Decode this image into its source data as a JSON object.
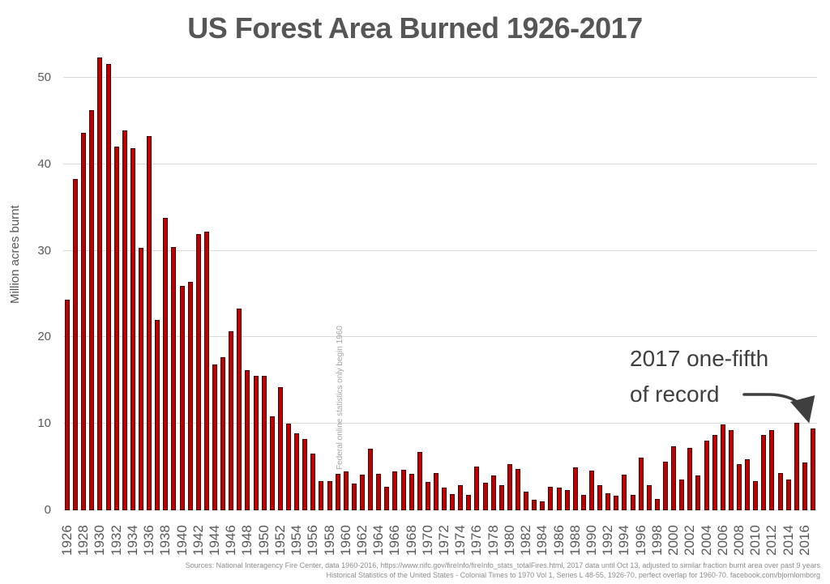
{
  "title": "US Forest Area Burned 1926-2017",
  "y_axis": {
    "label": "Million acres burnt",
    "ticks": [
      0,
      10,
      20,
      30,
      40,
      50
    ]
  },
  "annotation": {
    "line1": "2017 one-fifth",
    "line2": "of record"
  },
  "note_vertical": "Federal online statistics only begin 1960",
  "sources": {
    "line1": "Sources: National Interagency Fire Center,  data 1960-2016, https://www.nifc.gov/fireInfo/fireInfo_stats_totalFires.html, 2017 data until Oct 13, adjusted to similar fraction burnt area over past 9 years",
    "line2": "Historical Statistics of the United States - Colonial Times to 1970 Vol 1, Series L 48-55, 1926-70, perfect overlap for 1960-70. facebook.com/bjornlomborg"
  },
  "colors": {
    "bar_fill": "#c00000",
    "bar_border": "#3c0404",
    "gridline": "#d9d9d9",
    "title_text": "#565656",
    "axis_text": "#595959",
    "annotation_text": "#3f3f3f",
    "note_text": "#a6a6a6",
    "sources_text": "#8c8c8c"
  },
  "chart_data": {
    "type": "bar",
    "title": "US Forest Area Burned 1926-2017",
    "xlabel": "",
    "ylabel": "Million acres burnt",
    "ylim": [
      0,
      50
    ],
    "grid": "horizontal gridlines at every 10",
    "legend": "none",
    "x_tick_labels": [
      "1926",
      "1928",
      "1930",
      "1932",
      "1934",
      "1936",
      "1938",
      "1940",
      "1942",
      "1944",
      "1946",
      "1948",
      "1950",
      "1952",
      "1954",
      "1956",
      "1958",
      "1960",
      "1962",
      "1964",
      "1966",
      "1968",
      "1970",
      "1972",
      "1974",
      "1976",
      "1978",
      "1980",
      "1982",
      "1984",
      "1986",
      "1988",
      "1990",
      "1992",
      "1994",
      "1996",
      "1998",
      "2000",
      "2002",
      "2004",
      "2006",
      "2008",
      "2010",
      "2012",
      "2014",
      "2016"
    ],
    "categories": [
      1926,
      1927,
      1928,
      1929,
      1930,
      1931,
      1932,
      1933,
      1934,
      1935,
      1936,
      1937,
      1938,
      1939,
      1940,
      1941,
      1942,
      1943,
      1944,
      1945,
      1946,
      1947,
      1948,
      1949,
      1950,
      1951,
      1952,
      1953,
      1954,
      1955,
      1956,
      1957,
      1958,
      1959,
      1960,
      1961,
      1962,
      1963,
      1964,
      1965,
      1966,
      1967,
      1968,
      1969,
      1970,
      1971,
      1972,
      1973,
      1974,
      1975,
      1976,
      1977,
      1978,
      1979,
      1980,
      1981,
      1982,
      1983,
      1984,
      1985,
      1986,
      1987,
      1988,
      1989,
      1990,
      1991,
      1992,
      1993,
      1994,
      1995,
      1996,
      1997,
      1998,
      1999,
      2000,
      2001,
      2002,
      2003,
      2004,
      2005,
      2006,
      2007,
      2008,
      2009,
      2010,
      2011,
      2012,
      2013,
      2014,
      2015,
      2016,
      2017
    ],
    "values": [
      24.3,
      38.3,
      43.6,
      46.3,
      52.3,
      51.6,
      42.0,
      43.9,
      41.9,
      30.3,
      43.3,
      22.0,
      33.8,
      30.4,
      25.9,
      26.4,
      31.9,
      32.2,
      16.9,
      17.7,
      20.7,
      23.3,
      16.2,
      15.5,
      15.5,
      10.9,
      14.2,
      10.0,
      8.9,
      8.2,
      6.6,
      3.4,
      3.4,
      4.2,
      4.5,
      3.1,
      4.1,
      7.1,
      4.2,
      2.7,
      4.5,
      4.7,
      4.2,
      6.7,
      3.3,
      4.3,
      2.6,
      1.9,
      2.9,
      1.8,
      5.1,
      3.2,
      4.0,
      2.9,
      5.3,
      4.8,
      2.2,
      1.2,
      1.0,
      2.7,
      2.6,
      2.3,
      5.0,
      1.8,
      4.6,
      2.9,
      2.0,
      1.7,
      4.1,
      1.8,
      6.1,
      2.9,
      1.3,
      5.6,
      7.4,
      3.6,
      7.2,
      4.0,
      8.1,
      8.7,
      9.9,
      9.3,
      5.3,
      5.9,
      3.4,
      8.7,
      9.3,
      4.3,
      3.6,
      10.1,
      5.5,
      9.5
    ]
  }
}
